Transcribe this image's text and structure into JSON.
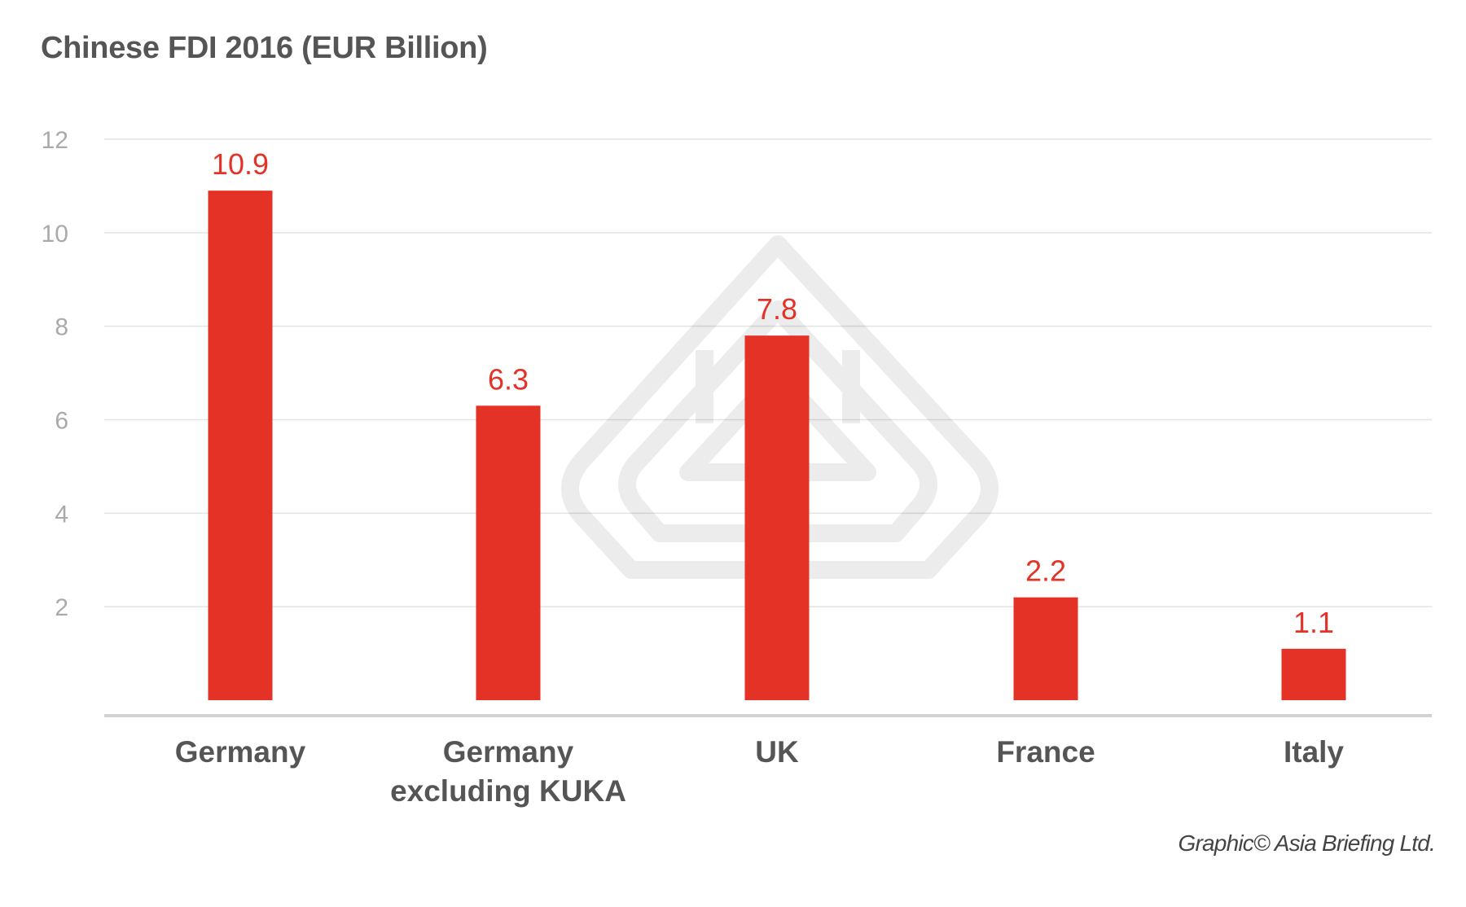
{
  "chart_data": {
    "type": "bar",
    "title": "Chinese FDI 2016 (EUR Billion)",
    "categories": [
      [
        "Germany"
      ],
      [
        "Germany",
        "excluding KUKA"
      ],
      [
        "UK"
      ],
      [
        "France"
      ],
      [
        "Italy"
      ]
    ],
    "values": [
      10.9,
      6.3,
      7.8,
      2.2,
      1.1
    ],
    "value_labels": [
      "10.9",
      "6.3",
      "7.8",
      "2.2",
      "1.1"
    ],
    "yticks": [
      "2",
      "4",
      "6",
      "8",
      "10",
      "12"
    ],
    "ylim": [
      0,
      12
    ],
    "grid": true,
    "bar_color": "#e53227",
    "label_color": "#e53227",
    "xlabel": "",
    "ylabel": ""
  },
  "credit": "Graphic© Asia Briefing Ltd.",
  "watermark": "asia-briefing-logo"
}
